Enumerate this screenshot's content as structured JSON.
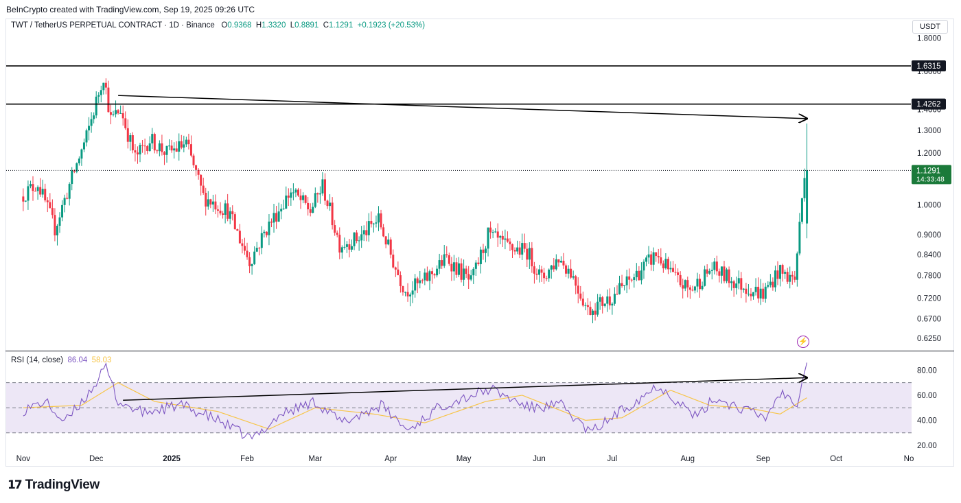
{
  "caption": "BeInCrypto created with TradingView.com, Sep 19, 2025 09:26 UTC",
  "brand": {
    "logo": "17",
    "name": "TradingView"
  },
  "legend": {
    "symbol": "TWT / TetherUS PERPETUAL CONTRACT · 1D · Binance",
    "o_label": "O",
    "o": "0.9368",
    "h_label": "H",
    "h": "1.3320",
    "l_label": "L",
    "l": "0.8891",
    "c_label": "C",
    "c": "1.1291",
    "change": "+0.1923 (+20.53%)"
  },
  "currency": "USDT",
  "rsi_legend": {
    "label": "RSI (14, close)",
    "rsi": "86.04",
    "ma": "58.03"
  },
  "colors": {
    "up": "#089981",
    "down": "#f23645",
    "rsi": "#7e57c2",
    "rsi_ma": "#f7c548",
    "band_fill": "#ede7f6"
  },
  "chart_data": [
    {
      "type": "candlestick",
      "title": "TWT / TetherUS PERPETUAL CONTRACT · 1D · Binance",
      "y_scale": "log",
      "ylim": [
        0.6,
        1.85
      ],
      "y_ticks": [
        "1.8000",
        "1.6000",
        "1.4000",
        "1.3000",
        "1.2000",
        "1.0000",
        "0.9000",
        "0.8400",
        "0.7800",
        "0.7200",
        "0.6700",
        "0.6250"
      ],
      "x_ticks": [
        "Nov",
        "Dec",
        "2025",
        "Feb",
        "Mar",
        "Apr",
        "May",
        "Jun",
        "Jul",
        "Aug",
        "Sep",
        "Oct",
        "No"
      ],
      "price_label": {
        "value": "1.1291",
        "countdown": "14:33:48"
      },
      "horizontal_levels": [
        {
          "label": "1.6315",
          "value": 1.6315
        },
        {
          "label": "1.4262",
          "value": 1.4262
        }
      ],
      "trend_arrow": {
        "from": {
          "date": "2024-12-10",
          "value": 1.47
        },
        "to": {
          "date": "2025-09-19",
          "value": 1.355
        }
      },
      "anchors": [
        {
          "date": "2024-11-01",
          "value": 1.03
        },
        {
          "date": "2024-11-08",
          "value": 1.08
        },
        {
          "date": "2024-11-15",
          "value": 0.92
        },
        {
          "date": "2024-11-22",
          "value": 1.1
        },
        {
          "date": "2024-11-28",
          "value": 1.27
        },
        {
          "date": "2024-12-05",
          "value": 1.58
        },
        {
          "date": "2024-12-08",
          "value": 1.35
        },
        {
          "date": "2024-12-12",
          "value": 1.4
        },
        {
          "date": "2024-12-18",
          "value": 1.18
        },
        {
          "date": "2024-12-24",
          "value": 1.26
        },
        {
          "date": "2024-12-31",
          "value": 1.2
        },
        {
          "date": "2025-01-08",
          "value": 1.24
        },
        {
          "date": "2025-01-15",
          "value": 1.03
        },
        {
          "date": "2025-01-25",
          "value": 0.98
        },
        {
          "date": "2025-02-03",
          "value": 0.82
        },
        {
          "date": "2025-02-10",
          "value": 0.92
        },
        {
          "date": "2025-02-20",
          "value": 1.05
        },
        {
          "date": "2025-02-28",
          "value": 0.98
        },
        {
          "date": "2025-03-05",
          "value": 1.07
        },
        {
          "date": "2025-03-12",
          "value": 0.87
        },
        {
          "date": "2025-03-20",
          "value": 0.89
        },
        {
          "date": "2025-03-28",
          "value": 0.95
        },
        {
          "date": "2025-04-04",
          "value": 0.8
        },
        {
          "date": "2025-04-08",
          "value": 0.74
        },
        {
          "date": "2025-04-15",
          "value": 0.76
        },
        {
          "date": "2025-04-25",
          "value": 0.83
        },
        {
          "date": "2025-05-05",
          "value": 0.76
        },
        {
          "date": "2025-05-12",
          "value": 0.9
        },
        {
          "date": "2025-05-20",
          "value": 0.86
        },
        {
          "date": "2025-05-28",
          "value": 0.85
        },
        {
          "date": "2025-06-03",
          "value": 0.77
        },
        {
          "date": "2025-06-10",
          "value": 0.83
        },
        {
          "date": "2025-06-15",
          "value": 0.79
        },
        {
          "date": "2025-06-22",
          "value": 0.69
        },
        {
          "date": "2025-07-01",
          "value": 0.72
        },
        {
          "date": "2025-07-10",
          "value": 0.77
        },
        {
          "date": "2025-07-20",
          "value": 0.84
        },
        {
          "date": "2025-07-28",
          "value": 0.77
        },
        {
          "date": "2025-08-03",
          "value": 0.74
        },
        {
          "date": "2025-08-12",
          "value": 0.8
        },
        {
          "date": "2025-08-22",
          "value": 0.76
        },
        {
          "date": "2025-09-02",
          "value": 0.73
        },
        {
          "date": "2025-09-08",
          "value": 0.79
        },
        {
          "date": "2025-09-15",
          "value": 0.77
        },
        {
          "date": "2025-09-17",
          "value": 0.93
        },
        {
          "date": "2025-09-19",
          "value": 1.13
        }
      ],
      "last_candle": {
        "date": "2025-09-19",
        "open": 0.9368,
        "high": 1.332,
        "low": 0.8891,
        "close": 1.1291
      }
    },
    {
      "type": "line",
      "title": "RSI (14, close)",
      "ylim": [
        14,
        95
      ],
      "y_ticks": [
        "80.00",
        "60.00",
        "40.00",
        "20.00"
      ],
      "bands": [
        70,
        50,
        30
      ],
      "series": [
        {
          "name": "RSI",
          "last": 86.04
        },
        {
          "name": "MA",
          "last": 58.03
        }
      ],
      "trend_arrow": {
        "from": {
          "date": "2024-12-12",
          "value": 56
        },
        "to": {
          "date": "2025-09-19",
          "value": 74
        }
      },
      "rsi_anchors": [
        {
          "date": "2024-11-01",
          "value": 48
        },
        {
          "date": "2024-11-10",
          "value": 55
        },
        {
          "date": "2024-11-18",
          "value": 38
        },
        {
          "date": "2024-11-28",
          "value": 62
        },
        {
          "date": "2024-12-05",
          "value": 82
        },
        {
          "date": "2024-12-10",
          "value": 55
        },
        {
          "date": "2024-12-20",
          "value": 46
        },
        {
          "date": "2025-01-05",
          "value": 52
        },
        {
          "date": "2025-01-20",
          "value": 40
        },
        {
          "date": "2025-02-03",
          "value": 25
        },
        {
          "date": "2025-02-15",
          "value": 45
        },
        {
          "date": "2025-03-01",
          "value": 55
        },
        {
          "date": "2025-03-12",
          "value": 38
        },
        {
          "date": "2025-03-28",
          "value": 52
        },
        {
          "date": "2025-04-08",
          "value": 32
        },
        {
          "date": "2025-04-22",
          "value": 52
        },
        {
          "date": "2025-05-12",
          "value": 65
        },
        {
          "date": "2025-05-28",
          "value": 50
        },
        {
          "date": "2025-06-10",
          "value": 52
        },
        {
          "date": "2025-06-22",
          "value": 30
        },
        {
          "date": "2025-07-05",
          "value": 48
        },
        {
          "date": "2025-07-20",
          "value": 68
        },
        {
          "date": "2025-07-28",
          "value": 55
        },
        {
          "date": "2025-08-05",
          "value": 42
        },
        {
          "date": "2025-08-12",
          "value": 58
        },
        {
          "date": "2025-08-25",
          "value": 48
        },
        {
          "date": "2025-09-02",
          "value": 42
        },
        {
          "date": "2025-09-08",
          "value": 62
        },
        {
          "date": "2025-09-15",
          "value": 55
        },
        {
          "date": "2025-09-19",
          "value": 86
        }
      ],
      "ma_anchors": [
        {
          "date": "2024-11-01",
          "value": 50
        },
        {
          "date": "2024-11-25",
          "value": 52
        },
        {
          "date": "2024-12-10",
          "value": 70
        },
        {
          "date": "2024-12-25",
          "value": 55
        },
        {
          "date": "2025-01-20",
          "value": 47
        },
        {
          "date": "2025-02-10",
          "value": 33
        },
        {
          "date": "2025-03-01",
          "value": 50
        },
        {
          "date": "2025-03-25",
          "value": 45
        },
        {
          "date": "2025-04-15",
          "value": 38
        },
        {
          "date": "2025-05-10",
          "value": 55
        },
        {
          "date": "2025-05-25",
          "value": 60
        },
        {
          "date": "2025-06-20",
          "value": 40
        },
        {
          "date": "2025-07-05",
          "value": 42
        },
        {
          "date": "2025-07-25",
          "value": 64
        },
        {
          "date": "2025-08-10",
          "value": 52
        },
        {
          "date": "2025-08-28",
          "value": 49
        },
        {
          "date": "2025-09-08",
          "value": 45
        },
        {
          "date": "2025-09-19",
          "value": 58
        }
      ]
    }
  ]
}
